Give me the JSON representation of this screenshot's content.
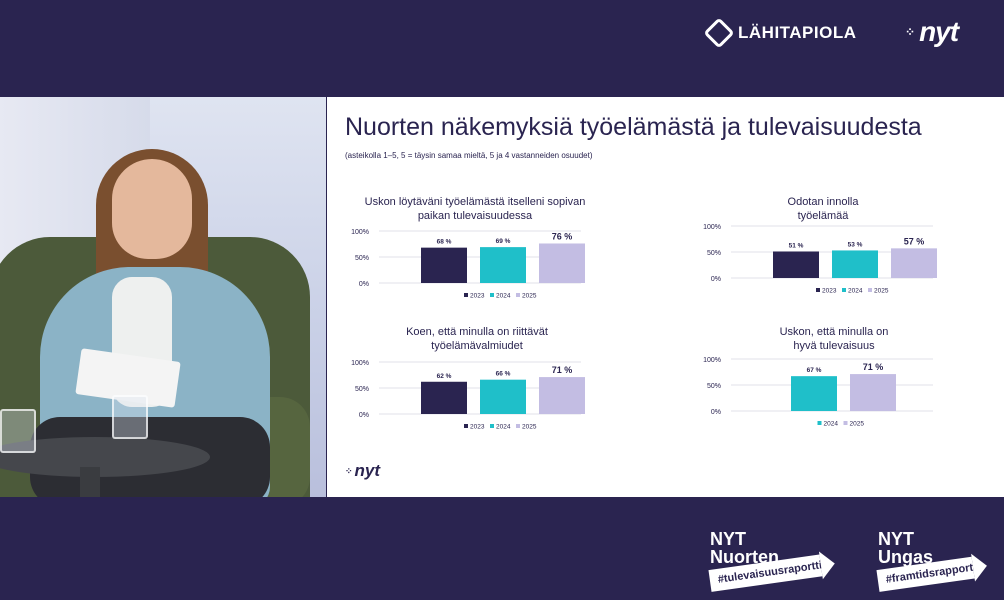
{
  "header": {
    "sponsor_logo": "LÄHITAPIOLA",
    "brand_logo": "nyt"
  },
  "slide": {
    "title": "Nuorten näkemyksiä työelämästä ja tulevaisuudesta",
    "subtitle": "(asteikolla 1–5, 5 = täysin samaa mieltä, 5 ja 4 vastanneiden osuudet)",
    "footer_logo": "nyt"
  },
  "chart_data": [
    {
      "type": "bar",
      "title": "Uskon löytäväni työelämästä itselleni sopivan paikan tulevaisuudessa",
      "title_lines": [
        "Uskon löytäväni työelämästä itselleni sopivan",
        "paikan tulevaisuudessa"
      ],
      "categories": [
        "2023",
        "2024",
        "2025"
      ],
      "values": [
        68,
        69,
        76
      ],
      "value_labels": [
        "68 %",
        "69 %",
        "76 %"
      ],
      "colors": [
        "#2a2450",
        "#1fbfc9",
        "#c3bde3"
      ],
      "y_ticks": [
        "100%",
        "50%",
        "0%"
      ],
      "ylim": [
        0,
        100
      ],
      "legend": [
        "2023",
        "2024",
        "2025"
      ]
    },
    {
      "type": "bar",
      "title": "Odotan innolla työelämää",
      "title_lines": [
        "Odotan innolla",
        "työelämää"
      ],
      "categories": [
        "2023",
        "2024",
        "2025"
      ],
      "values": [
        51,
        53,
        57
      ],
      "value_labels": [
        "51 %",
        "53 %",
        "57 %"
      ],
      "colors": [
        "#2a2450",
        "#1fbfc9",
        "#c3bde3"
      ],
      "y_ticks": [
        "100%",
        "50%",
        "0%"
      ],
      "ylim": [
        0,
        100
      ],
      "legend": [
        "2023",
        "2024",
        "2025"
      ]
    },
    {
      "type": "bar",
      "title": "Koen, että minulla on riittävät työelämävalmiudet",
      "title_lines": [
        "Koen, että minulla on riittävät",
        "työelämävalmiudet"
      ],
      "categories": [
        "2023",
        "2024",
        "2025"
      ],
      "values": [
        62,
        66,
        71
      ],
      "value_labels": [
        "62 %",
        "66 %",
        "71 %"
      ],
      "colors": [
        "#2a2450",
        "#1fbfc9",
        "#c3bde3"
      ],
      "y_ticks": [
        "100%",
        "50%",
        "0%"
      ],
      "ylim": [
        0,
        100
      ],
      "legend": [
        "2023",
        "2024",
        "2025"
      ]
    },
    {
      "type": "bar",
      "title": "Uskon, että minulla on hyvä tulevaisuus",
      "title_lines": [
        "Uskon, että minulla on",
        "hyvä tulevaisuus"
      ],
      "categories": [
        "2024",
        "2025"
      ],
      "values": [
        67,
        71
      ],
      "value_labels": [
        "67 %",
        "71 %"
      ],
      "colors": [
        "#1fbfc9",
        "#c3bde3"
      ],
      "y_ticks": [
        "100%",
        "50%",
        "0%"
      ],
      "ylim": [
        0,
        100
      ],
      "legend": [
        "2024",
        "2025"
      ]
    }
  ],
  "footer": {
    "badge1": {
      "line1": "NYT",
      "line2": "Nuorten",
      "tag": "#tulevaisuusraportti"
    },
    "badge2": {
      "line1": "NYT",
      "line2": "Ungas",
      "tag": "#framtidsrapport"
    }
  }
}
